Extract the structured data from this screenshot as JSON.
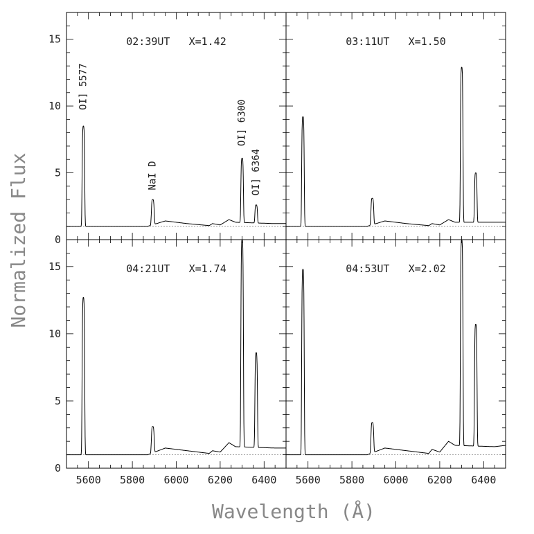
{
  "chart_data": {
    "type": "line",
    "xlabel": "Wavelength (Å)",
    "ylabel": "Normalized Flux",
    "xlim": [
      5500,
      6500
    ],
    "ylim": [
      0,
      17
    ],
    "x_ticks": [
      5600,
      5800,
      6000,
      6200,
      6400
    ],
    "y_ticks": [
      0,
      5,
      10,
      15
    ],
    "continuum_level": 1,
    "line_width_A": 12,
    "lines": [
      {
        "name": "OI] 5577",
        "wavelength": 5577
      },
      {
        "name": "NaI D",
        "wavelength": 5893
      },
      {
        "name": "OI] 6300",
        "wavelength": 6300
      },
      {
        "name": "OI] 6364",
        "wavelength": 6364
      }
    ],
    "panels": [
      {
        "ut": "02:39UT",
        "airmass": "X=1.42",
        "peaks": {
          "5577": 8.5,
          "5893": 3.0,
          "6300": 6.1,
          "6364": 2.6
        },
        "continuum": [
          [
            5500,
            1.0
          ],
          [
            5870,
            1.0
          ],
          [
            5950,
            1.4
          ],
          [
            6050,
            1.2
          ],
          [
            6150,
            1.05
          ],
          [
            6165,
            1.2
          ],
          [
            6200,
            1.1
          ],
          [
            6240,
            1.5
          ],
          [
            6270,
            1.3
          ],
          [
            6450,
            1.2
          ],
          [
            6500,
            1.2
          ]
        ],
        "annotations": [
          {
            "text": "OI] 5577",
            "x": 5577,
            "y": 9.7,
            "rotate": true
          },
          {
            "text": "NaI D",
            "x": 5893,
            "y": 3.7,
            "rotate": true
          },
          {
            "text": "OI] 6300",
            "x": 6300,
            "y": 7.0,
            "rotate": true
          },
          {
            "text": "OI] 6364",
            "x": 6364,
            "y": 3.3,
            "rotate": true
          }
        ]
      },
      {
        "ut": "03:11UT",
        "airmass": "X=1.50",
        "peaks": {
          "5577": 9.2,
          "5893": 3.1,
          "6300": 12.9,
          "6364": 5.0
        },
        "continuum": [
          [
            5500,
            1.0
          ],
          [
            5870,
            1.0
          ],
          [
            5950,
            1.4
          ],
          [
            6050,
            1.2
          ],
          [
            6150,
            1.05
          ],
          [
            6165,
            1.2
          ],
          [
            6200,
            1.1
          ],
          [
            6240,
            1.5
          ],
          [
            6270,
            1.3
          ],
          [
            6450,
            1.3
          ],
          [
            6500,
            1.3
          ]
        ],
        "annotations": []
      },
      {
        "ut": "04:21UT",
        "airmass": "X=1.74",
        "peaks": {
          "5577": 12.7,
          "5893": 3.1,
          "6300": 17.0,
          "6364": 8.6
        },
        "continuum": [
          [
            5500,
            1.0
          ],
          [
            5870,
            1.0
          ],
          [
            5950,
            1.5
          ],
          [
            6050,
            1.3
          ],
          [
            6150,
            1.1
          ],
          [
            6165,
            1.3
          ],
          [
            6200,
            1.2
          ],
          [
            6240,
            1.9
          ],
          [
            6270,
            1.6
          ],
          [
            6450,
            1.5
          ],
          [
            6500,
            1.5
          ]
        ],
        "annotations": []
      },
      {
        "ut": "04:53UT",
        "airmass": "X=2.02",
        "peaks": {
          "5577": 14.8,
          "5893": 3.4,
          "6300": 17.0,
          "6364": 10.7
        },
        "continuum": [
          [
            5500,
            1.0
          ],
          [
            5870,
            1.0
          ],
          [
            5950,
            1.5
          ],
          [
            6050,
            1.3
          ],
          [
            6150,
            1.1
          ],
          [
            6165,
            1.4
          ],
          [
            6200,
            1.2
          ],
          [
            6240,
            2.0
          ],
          [
            6270,
            1.7
          ],
          [
            6450,
            1.6
          ],
          [
            6500,
            1.7
          ]
        ],
        "annotations": []
      }
    ]
  }
}
